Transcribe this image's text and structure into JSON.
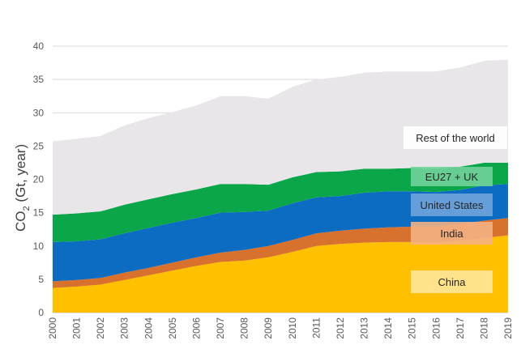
{
  "chart_data": {
    "type": "area",
    "stacked": true,
    "ylabel_main": "CO",
    "ylabel_sub": "2",
    "ylabel_rest": " (Gt, year)",
    "ylim": [
      0,
      40
    ],
    "yticks": [
      "0",
      "5",
      "10",
      "15",
      "20",
      "25",
      "30",
      "35",
      "40"
    ],
    "x": [
      "2000",
      "2001",
      "2002",
      "2003",
      "2004",
      "2005",
      "2006",
      "2007",
      "2008",
      "2009",
      "2010",
      "2011",
      "2012",
      "2013",
      "2014",
      "2015",
      "2016",
      "2017",
      "2018",
      "2019"
    ],
    "grid": true,
    "series": [
      {
        "name": "China",
        "color": "#FFC000",
        "label_fill": "#FFE699",
        "values": [
          3.7,
          3.9,
          4.2,
          4.9,
          5.6,
          6.3,
          7.0,
          7.6,
          7.8,
          8.3,
          9.1,
          10.0,
          10.3,
          10.5,
          10.6,
          10.6,
          10.5,
          10.8,
          11.2,
          11.6
        ]
      },
      {
        "name": "India",
        "color": "#D8702E",
        "label_fill": "#F4B183",
        "values": [
          1.0,
          1.0,
          1.0,
          1.1,
          1.1,
          1.2,
          1.3,
          1.4,
          1.6,
          1.7,
          1.8,
          1.9,
          2.0,
          2.1,
          2.2,
          2.3,
          2.4,
          2.5,
          2.6,
          2.6
        ]
      },
      {
        "name": "United States",
        "color": "#0C6CC2",
        "label_fill": "#6FA4DA",
        "values": [
          5.9,
          5.8,
          5.8,
          5.9,
          6.0,
          6.0,
          5.9,
          6.0,
          5.7,
          5.3,
          5.5,
          5.4,
          5.2,
          5.4,
          5.4,
          5.3,
          5.2,
          5.1,
          5.3,
          5.1
        ]
      },
      {
        "name": "EU27 + UK",
        "color": "#0BA64A",
        "label_fill": "#70D39A",
        "values": [
          4.1,
          4.2,
          4.2,
          4.3,
          4.3,
          4.3,
          4.3,
          4.3,
          4.2,
          3.9,
          3.9,
          3.8,
          3.7,
          3.6,
          3.4,
          3.5,
          3.5,
          3.5,
          3.4,
          3.2
        ]
      },
      {
        "name": "Rest of the world",
        "color": "#E8E6E9",
        "label_fill": "#FFFFFF",
        "values": [
          11.0,
          11.2,
          11.3,
          11.9,
          12.2,
          12.3,
          12.6,
          13.2,
          13.2,
          12.9,
          13.6,
          13.9,
          14.2,
          14.4,
          14.6,
          14.5,
          14.6,
          14.9,
          15.3,
          15.5
        ]
      }
    ],
    "annotations": [
      "China",
      "India",
      "United States",
      "EU27 + UK",
      "Rest of the world"
    ]
  }
}
